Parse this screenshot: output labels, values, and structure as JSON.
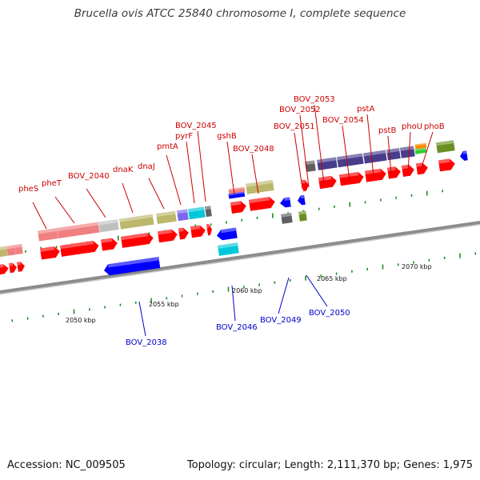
{
  "title": "Brucella ovis ATCC 25840 chromosome I, complete sequence",
  "footer": {
    "accession": "Accession: NC_009505",
    "topology": "Topology: circular; Length: 2,111,370 bp; Genes: 1,975"
  },
  "colors": {
    "backbone": "#8c8c8c",
    "tick": "#228b22",
    "label_top": "#cc0000",
    "label_bottom": "#0000cc",
    "red": "#ff0000",
    "pink": "#f08080",
    "khaki": "#bdb76b",
    "grey": "#c0c0c0",
    "darkgrey": "#606060",
    "slateblue": "#483d8b",
    "blue": "#0000ff",
    "cyan": "#00c8d8",
    "purple": "#7b68ee",
    "orange": "#ff8c00",
    "green": "#32cd32",
    "olive": "#6b8e23"
  },
  "kbp_labels": [
    "2050 kbp",
    "2055 kbp",
    "2060 kbp",
    "2065 kbp",
    "2070 kbp"
  ],
  "top_labels": [
    "pheS",
    "pheT",
    "BOV_2040",
    "dnaK",
    "dnaJ",
    "pmtA",
    "pyrF",
    "BOV_2045",
    "gshB",
    "BOV_2048",
    "BOV_2051",
    "BOV_2052",
    "BOV_2053",
    "BOV_2054",
    "pstA",
    "pstB",
    "phoU",
    "phoB"
  ],
  "bottom_labels": [
    "BOV_2038",
    "BOV_2046",
    "BOV_2049",
    "BOV_2050"
  ]
}
